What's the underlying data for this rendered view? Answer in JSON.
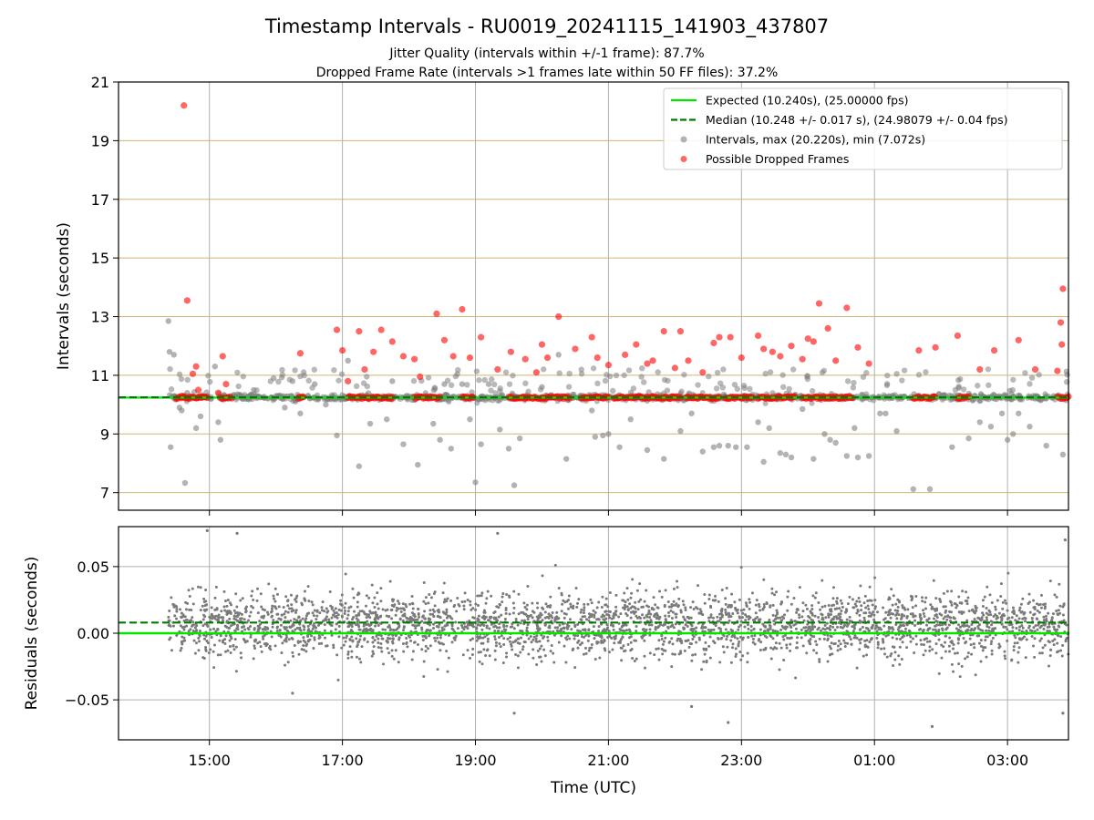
{
  "chart_data": [
    {
      "type": "scatter",
      "panel": "intervals",
      "title": "Timestamp Intervals - RU0019_20241115_141903_437807",
      "subtitles": [
        "Jitter Quality (intervals within +/-1 frame): 87.7%",
        "Dropped Frame Rate (intervals >1 frames late within 50 FF files): 37.2%"
      ],
      "xlabel": "",
      "ylabel": "Intervals (seconds)",
      "ylim": [
        6.4,
        21
      ],
      "y_ticks": [
        "7",
        "9",
        "11",
        "13",
        "15",
        "17",
        "19",
        "21"
      ],
      "grid": true,
      "legend_position": "top-right",
      "legend": [
        {
          "label": "Expected (10.240s), (25.00000 fps)",
          "style": "solid-line",
          "color": "#00e600"
        },
        {
          "label": "Median (10.248 +/- 0.017 s), (24.98079 +/- 0.04 fps)",
          "style": "dashed-line",
          "color": "#007a00"
        },
        {
          "label": "Intervals, max (20.220s), min (7.072s)",
          "style": "marker",
          "color": "#808080"
        },
        {
          "label": "Possible Dropped Frames",
          "style": "marker",
          "color": "#ff0000"
        }
      ],
      "expected_line": 10.24,
      "median_line": 10.248,
      "interval_max": 20.22,
      "interval_min": 7.072,
      "series": [
        {
          "name": "Intervals, max (20.220s), min (7.072s)",
          "color": "#808080",
          "x": [
            "2024-11-15 14:23",
            "2024-11-15 14:24",
            "2024-11-15 14:25",
            "2024-11-15 14:28",
            "2024-11-15 14:33",
            "2024-11-15 14:35",
            "2024-11-15 14:38",
            "2024-11-15 14:40",
            "2024-11-15 14:48",
            "2024-11-15 14:52",
            "2024-11-15 15:05",
            "2024-11-15 15:08",
            "2024-11-15 15:10",
            "2024-11-15 15:28",
            "2024-11-15 15:40",
            "2024-11-15 15:58",
            "2024-11-15 16:08",
            "2024-11-15 16:15",
            "2024-11-15 16:22",
            "2024-11-15 16:35",
            "2024-11-15 16:45",
            "2024-11-15 16:55",
            "2024-11-15 17:05",
            "2024-11-15 17:15",
            "2024-11-15 17:25",
            "2024-11-15 17:40",
            "2024-11-15 17:45",
            "2024-11-15 17:55",
            "2024-11-15 18:08",
            "2024-11-15 18:22",
            "2024-11-15 18:28",
            "2024-11-15 18:32",
            "2024-11-15 18:38",
            "2024-11-15 18:48",
            "2024-11-15 18:55",
            "2024-11-15 19:00",
            "2024-11-15 19:05",
            "2024-11-15 19:12",
            "2024-11-15 19:22",
            "2024-11-15 19:30",
            "2024-11-15 19:35",
            "2024-11-15 19:40",
            "2024-11-15 20:00",
            "2024-11-15 20:15",
            "2024-11-15 20:22",
            "2024-11-15 20:35",
            "2024-11-15 20:45",
            "2024-11-15 20:48",
            "2024-11-15 20:55",
            "2024-11-15 21:00",
            "2024-11-15 21:10",
            "2024-11-15 21:20",
            "2024-11-15 21:35",
            "2024-11-15 21:50",
            "2024-11-15 22:05",
            "2024-11-15 22:15",
            "2024-11-15 22:25",
            "2024-11-15 22:35",
            "2024-11-15 22:40",
            "2024-11-15 22:45",
            "2024-11-15 22:48",
            "2024-11-15 22:55",
            "2024-11-15 23:05",
            "2024-11-15 23:15",
            "2024-11-15 23:20",
            "2024-11-15 23:25",
            "2024-11-15 23:35",
            "2024-11-15 23:40",
            "2024-11-15 23:45",
            "2024-11-15 23:55",
            "2024-11-16 00:05",
            "2024-11-16 00:15",
            "2024-11-16 00:20",
            "2024-11-16 00:25",
            "2024-11-16 00:35",
            "2024-11-16 00:42",
            "2024-11-16 00:45",
            "2024-11-16 00:55",
            "2024-11-16 01:05",
            "2024-11-16 01:10",
            "2024-11-16 01:20",
            "2024-11-16 01:35",
            "2024-11-16 01:50",
            "2024-11-16 02:10",
            "2024-11-16 02:25",
            "2024-11-16 02:35",
            "2024-11-16 02:45",
            "2024-11-16 02:55",
            "2024-11-16 03:00",
            "2024-11-16 03:05",
            "2024-11-16 03:10",
            "2024-11-16 03:20",
            "2024-11-16 03:35",
            "2024-11-16 03:50"
          ],
          "y": [
            12.85,
            11.8,
            8.55,
            11.7,
            9.9,
            9.8,
            7.33,
            10.4,
            9.2,
            9.6,
            11.3,
            9.4,
            8.8,
            10.3,
            10.5,
            10.9,
            9.9,
            10.8,
            9.7,
            10.7,
            10.0,
            8.95,
            11.5,
            7.9,
            9.35,
            9.5,
            10.8,
            8.65,
            7.95,
            9.35,
            8.8,
            10.7,
            8.5,
            10.7,
            9.5,
            7.35,
            8.65,
            10.7,
            9.15,
            8.5,
            7.25,
            8.85,
            10.6,
            11.7,
            8.15,
            10.3,
            9.8,
            8.9,
            8.95,
            9.0,
            8.55,
            9.5,
            8.45,
            8.15,
            9.1,
            9.7,
            8.4,
            8.55,
            8.6,
            10.3,
            8.6,
            8.55,
            8.55,
            9.4,
            8.05,
            9.2,
            8.35,
            8.3,
            8.2,
            9.85,
            8.15,
            9.0,
            8.8,
            8.7,
            8.25,
            9.2,
            8.2,
            8.25,
            9.7,
            9.7,
            9.1,
            7.12,
            7.12,
            8.55,
            8.85,
            9.4,
            9.25,
            9.7,
            8.8,
            9.0,
            9.7,
            9.25,
            8.6,
            8.3
          ]
        },
        {
          "name": "Possible Dropped Frames",
          "color": "#ff0000",
          "x": [
            "2024-11-15 14:35",
            "2024-11-15 14:37",
            "2024-11-15 14:40",
            "2024-11-15 14:45",
            "2024-11-15 14:48",
            "2024-11-15 14:50",
            "2024-11-15 15:08",
            "2024-11-15 15:12",
            "2024-11-15 15:15",
            "2024-11-15 16:22",
            "2024-11-15 16:55",
            "2024-11-15 17:00",
            "2024-11-15 17:05",
            "2024-11-15 17:15",
            "2024-11-15 17:20",
            "2024-11-15 17:28",
            "2024-11-15 17:35",
            "2024-11-15 17:45",
            "2024-11-15 17:55",
            "2024-11-15 18:05",
            "2024-11-15 18:10",
            "2024-11-15 18:25",
            "2024-11-15 18:32",
            "2024-11-15 18:40",
            "2024-11-15 18:48",
            "2024-11-15 18:55",
            "2024-11-15 19:05",
            "2024-11-15 19:20",
            "2024-11-15 19:32",
            "2024-11-15 19:45",
            "2024-11-15 19:55",
            "2024-11-15 20:00",
            "2024-11-15 20:05",
            "2024-11-15 20:15",
            "2024-11-15 20:30",
            "2024-11-15 20:45",
            "2024-11-15 20:50",
            "2024-11-15 21:00",
            "2024-11-15 21:15",
            "2024-11-15 21:25",
            "2024-11-15 21:35",
            "2024-11-15 21:40",
            "2024-11-15 21:50",
            "2024-11-15 22:00",
            "2024-11-15 22:05",
            "2024-11-15 22:12",
            "2024-11-15 22:25",
            "2024-11-15 22:35",
            "2024-11-15 22:40",
            "2024-11-15 22:50",
            "2024-11-15 23:00",
            "2024-11-15 23:15",
            "2024-11-15 23:20",
            "2024-11-15 23:28",
            "2024-11-15 23:35",
            "2024-11-15 23:45",
            "2024-11-15 23:55",
            "2024-11-16 00:00",
            "2024-11-16 00:05",
            "2024-11-16 00:10",
            "2024-11-16 00:18",
            "2024-11-16 00:25",
            "2024-11-16 00:35",
            "2024-11-16 00:45",
            "2024-11-16 00:55",
            "2024-11-16 01:40",
            "2024-11-16 01:55",
            "2024-11-16 02:15",
            "2024-11-16 02:35",
            "2024-11-16 02:48",
            "2024-11-16 03:10",
            "2024-11-16 03:25",
            "2024-11-16 03:45",
            "2024-11-16 03:48",
            "2024-11-16 03:49",
            "2024-11-16 03:50"
          ],
          "y": [
            10.3,
            20.2,
            13.55,
            11.05,
            11.3,
            10.5,
            10.4,
            11.65,
            10.7,
            11.75,
            12.55,
            11.85,
            10.8,
            12.5,
            11.2,
            11.8,
            12.55,
            12.15,
            11.65,
            11.55,
            10.95,
            13.1,
            12.2,
            11.65,
            13.25,
            11.6,
            12.3,
            11.2,
            11.8,
            11.55,
            11.1,
            12.05,
            11.6,
            13.0,
            11.9,
            12.3,
            11.6,
            11.35,
            11.7,
            12.05,
            11.4,
            11.5,
            12.5,
            11.25,
            12.5,
            11.5,
            11.1,
            12.1,
            12.3,
            12.3,
            11.6,
            12.35,
            11.9,
            11.8,
            11.65,
            12.0,
            11.55,
            12.25,
            12.15,
            13.45,
            12.6,
            11.5,
            13.3,
            11.95,
            11.4,
            11.85,
            11.95,
            12.35,
            11.2,
            11.85,
            12.2,
            11.2,
            11.15,
            12.8,
            12.05,
            13.95
          ]
        }
      ]
    },
    {
      "type": "scatter",
      "panel": "residuals",
      "xlabel": "Time (UTC)",
      "ylabel": "Residuals (seconds)",
      "ylim": [
        -0.08,
        0.08
      ],
      "y_ticks": [
        "0.05",
        "0.00",
        "−0.05"
      ],
      "x_ticks": [
        "15:00",
        "17:00",
        "19:00",
        "21:00",
        "23:00",
        "01:00",
        "03:00"
      ],
      "xlim": [
        "2024-11-15 13:38",
        "2024-11-16 03:55"
      ],
      "grid": true,
      "expected_line": 0.0,
      "median_line": 0.008,
      "series": [
        {
          "name": "Residuals",
          "color": "#808080",
          "x_range": [
            "2024-11-15 14:23",
            "2024-11-16 03:55"
          ],
          "y_range": [
            -0.07,
            0.077
          ],
          "outliers": [
            {
              "x": "2024-11-15 14:58",
              "y": 0.077
            },
            {
              "x": "2024-11-15 15:25",
              "y": 0.075
            },
            {
              "x": "2024-11-15 19:20",
              "y": 0.075
            },
            {
              "x": "2024-11-15 16:15",
              "y": -0.045
            },
            {
              "x": "2024-11-15 19:35",
              "y": -0.06
            },
            {
              "x": "2024-11-15 22:15",
              "y": -0.055
            },
            {
              "x": "2024-11-15 22:48",
              "y": -0.067
            },
            {
              "x": "2024-11-16 01:52",
              "y": -0.07
            },
            {
              "x": "2024-11-16 03:50",
              "y": -0.06
            },
            {
              "x": "2024-11-16 03:52",
              "y": 0.07
            }
          ]
        }
      ]
    }
  ]
}
